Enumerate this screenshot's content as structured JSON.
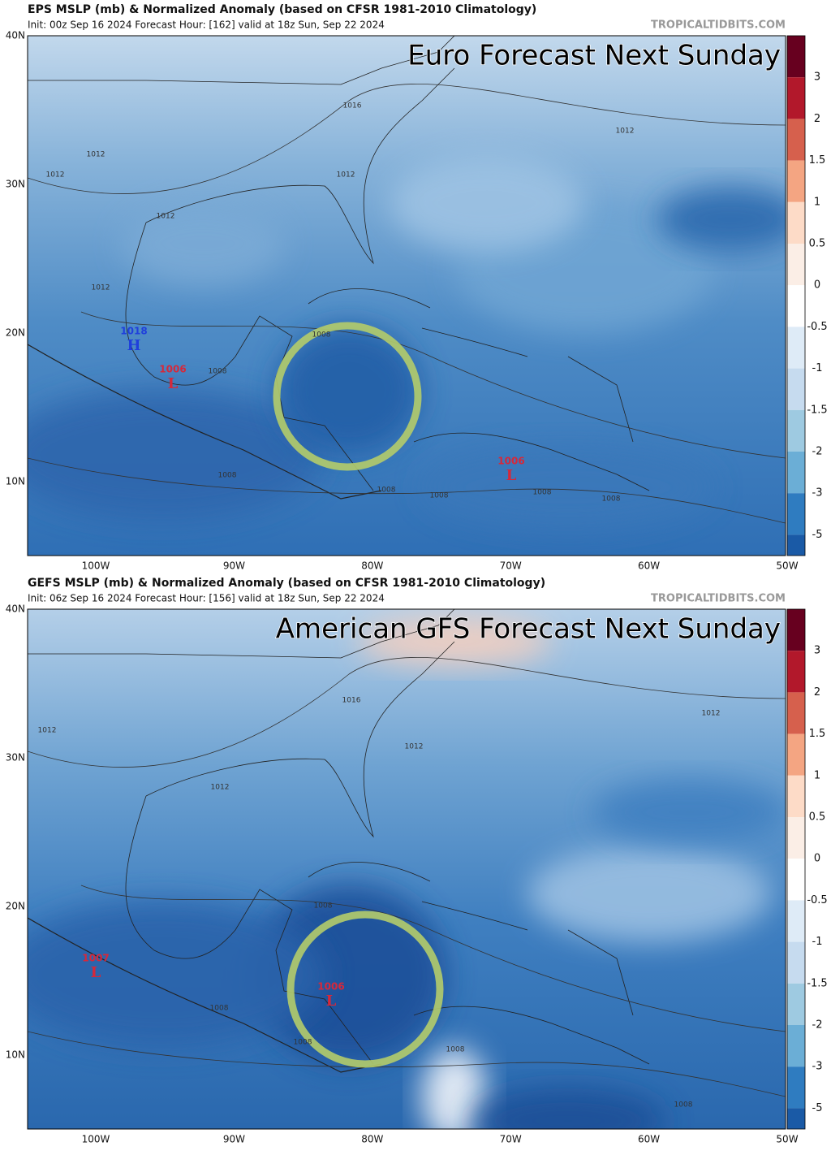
{
  "panels": [
    {
      "title": "EPS MSLP (mb) & Normalized Anomaly (based on CFSR 1981-2010 Climatology)",
      "init": "Init: 00z Sep 16 2024   Forecast Hour: [162]   valid at 18z Sun, Sep 22 2024",
      "site": "TROPICALTIDBITS.COM",
      "headline": "Euro Forecast Next Sunday",
      "lat_labels": [
        "40N",
        "30N",
        "20N",
        "10N"
      ],
      "lon_labels": [
        "100W",
        "90W",
        "80W",
        "70W",
        "60W",
        "50W"
      ],
      "colorbar_labels": [
        "3",
        "2",
        "1.5",
        "1",
        "0.5",
        "0",
        "-0.5",
        "-1",
        "-1.5",
        "-2",
        "-3",
        "-5"
      ],
      "contour_labels": [
        "1012",
        "1012",
        "1012",
        "1012",
        "1012",
        "1012",
        "1016",
        "1008",
        "1008",
        "1008",
        "1008",
        "1008",
        "1008",
        "1008"
      ],
      "centers": [
        {
          "value": "1018",
          "symbol": "H"
        },
        {
          "value": "1006",
          "symbol": "L"
        },
        {
          "value": "1006",
          "symbol": "L"
        }
      ]
    },
    {
      "title": "GEFS MSLP (mb) & Normalized Anomaly (based on CFSR 1981-2010 Climatology)",
      "init": "Init: 06z Sep 16 2024   Forecast Hour: [156]   valid at 18z Sun, Sep 22 2024",
      "site": "TROPICALTIDBITS.COM",
      "headline": "American GFS Forecast Next Sunday",
      "lat_labels": [
        "40N",
        "30N",
        "20N",
        "10N"
      ],
      "lon_labels": [
        "100W",
        "90W",
        "80W",
        "70W",
        "60W",
        "50W"
      ],
      "colorbar_labels": [
        "3",
        "2",
        "1.5",
        "1",
        "0.5",
        "0",
        "-0.5",
        "-1",
        "-1.5",
        "-2",
        "-3",
        "-5"
      ],
      "contour_labels": [
        "1012",
        "1012",
        "1012",
        "1012",
        "1016",
        "1008",
        "1008",
        "1008",
        "1008",
        "1008"
      ],
      "centers": [
        {
          "value": "1007",
          "symbol": "L"
        },
        {
          "value": "1006",
          "symbol": "L"
        }
      ]
    }
  ]
}
